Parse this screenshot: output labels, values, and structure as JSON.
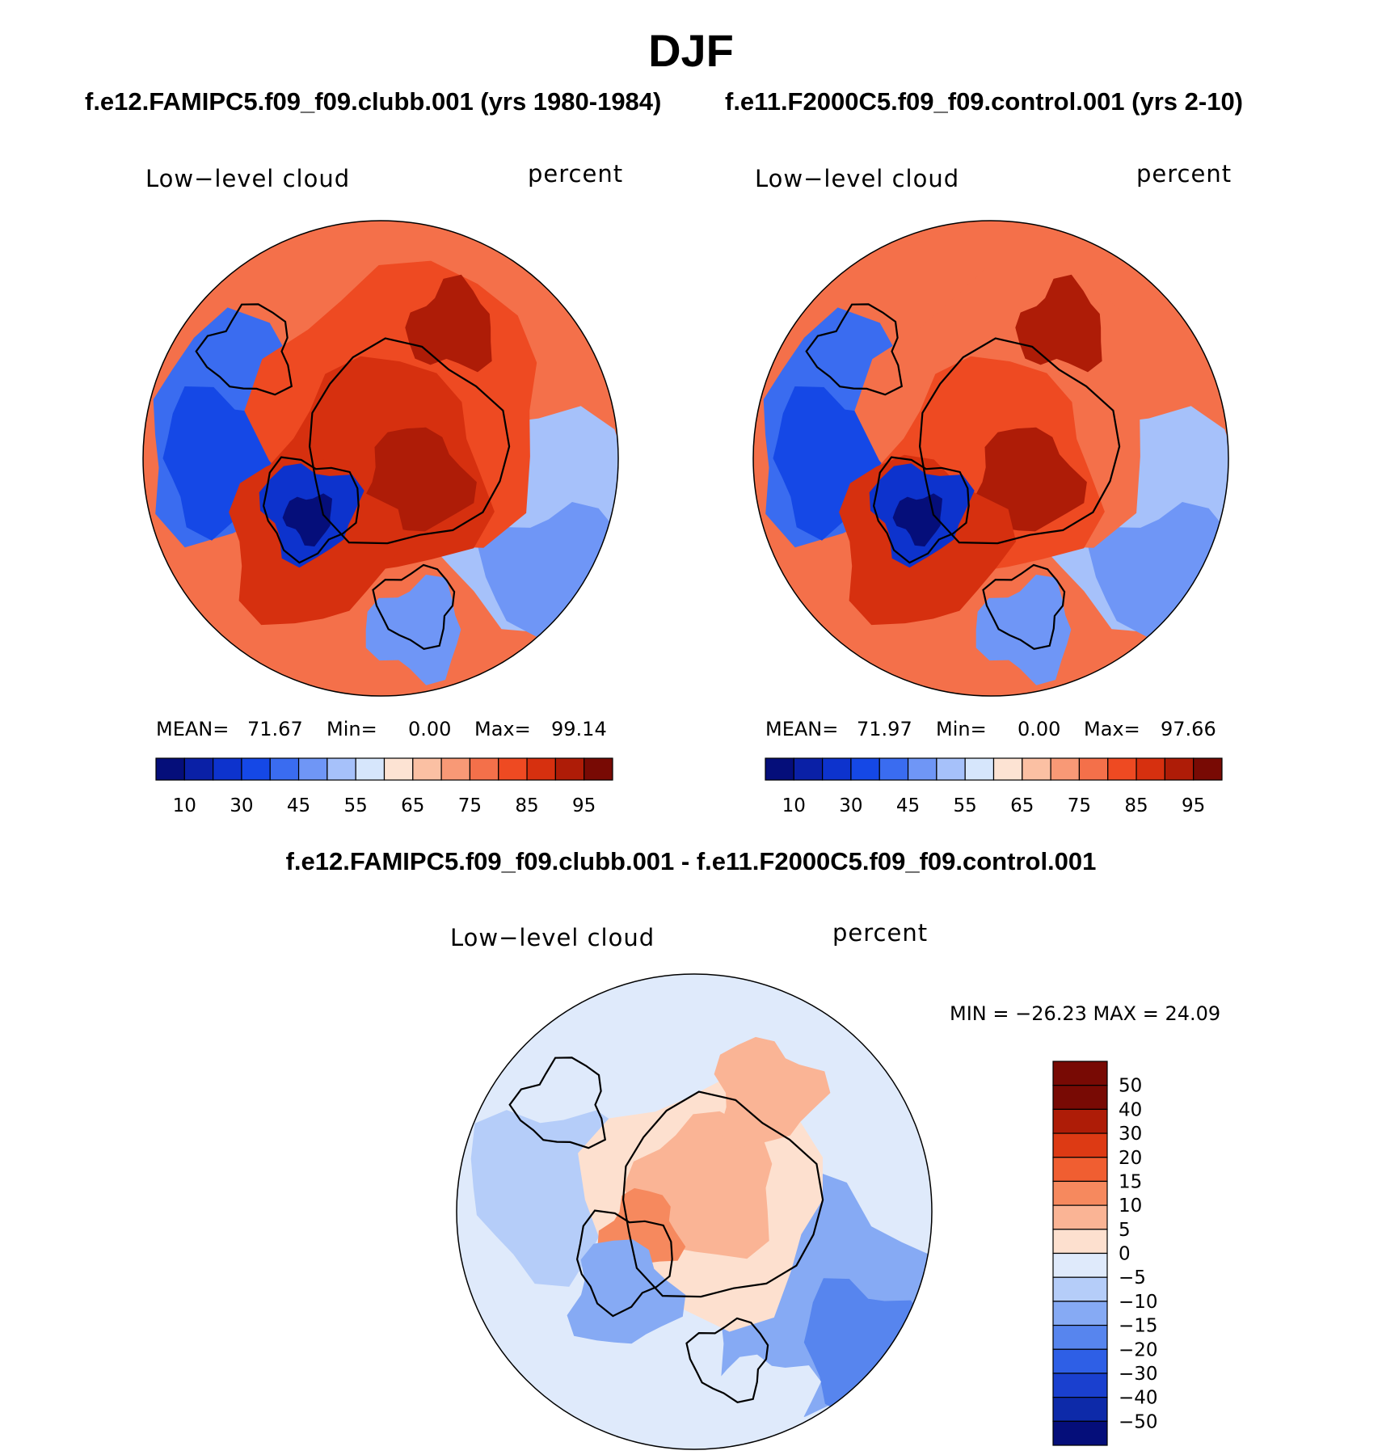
{
  "figure": {
    "season": "DJF",
    "case_a_title": "f.e12.FAMIPC5.f09_f09.clubb.001 (yrs 1980-1984)",
    "case_b_title": "f.e11.F2000C5.f09_f09.control.001 (yrs 2-10)",
    "diff_title": "f.e12.FAMIPC5.f09_f09.clubb.001 - f.e11.F2000C5.f09_f09.control.001"
  },
  "colors": {
    "seq_palette": [
      "#050e7a",
      "#0a20a6",
      "#0d33cd",
      "#1548e6",
      "#3a6cf0",
      "#6f96f6",
      "#a6c1fa",
      "#d6e6fc",
      "#fde3d3",
      "#fbc0a3",
      "#f89976",
      "#f4704a",
      "#ee4a22",
      "#d6300f",
      "#ae1c07",
      "#780a04"
    ],
    "div_palette": [
      "#780a04",
      "#ae1c07",
      "#dd3a14",
      "#f05e31",
      "#f6895e",
      "#fab495",
      "#fde0cf",
      "#dfeafb",
      "#b5cdf9",
      "#86aaf4",
      "#5785ee",
      "#2e5fe6",
      "#1a40cf",
      "#0d2aa9",
      "#050e7a"
    ]
  },
  "chart_data": [
    {
      "type": "heatmap",
      "name": "panel-a",
      "projection": "north-polar-stereographic",
      "title": "Low−level cloud",
      "units": "percent",
      "stats": {
        "mean_label": "MEAN=",
        "mean": "71.67",
        "min_label": "Min=",
        "min": "0.00",
        "max_label": "Max=",
        "max": "99.14"
      },
      "colorbar": {
        "orientation": "horizontal",
        "ticks": [
          "10",
          "30",
          "45",
          "55",
          "65",
          "75",
          "85",
          "95"
        ]
      }
    },
    {
      "type": "heatmap",
      "name": "panel-b",
      "projection": "north-polar-stereographic",
      "title": "Low−level cloud",
      "units": "percent",
      "stats": {
        "mean_label": "MEAN=",
        "mean": "71.97",
        "min_label": "Min=",
        "min": "0.00",
        "max_label": "Max=",
        "max": "97.66"
      },
      "colorbar": {
        "orientation": "horizontal",
        "ticks": [
          "10",
          "30",
          "45",
          "55",
          "65",
          "75",
          "85",
          "95"
        ]
      }
    },
    {
      "type": "heatmap",
      "name": "panel-diff",
      "projection": "north-polar-stereographic",
      "title": "Low−level cloud",
      "units": "percent",
      "stats_text": "MIN = −26.23 MAX =   24.09",
      "colorbar": {
        "orientation": "vertical",
        "ticks": [
          "50",
          "40",
          "30",
          "20",
          "15",
          "10",
          "5",
          "0",
          "−5",
          "−10",
          "−15",
          "−20",
          "−30",
          "−40",
          "−50"
        ]
      }
    }
  ]
}
